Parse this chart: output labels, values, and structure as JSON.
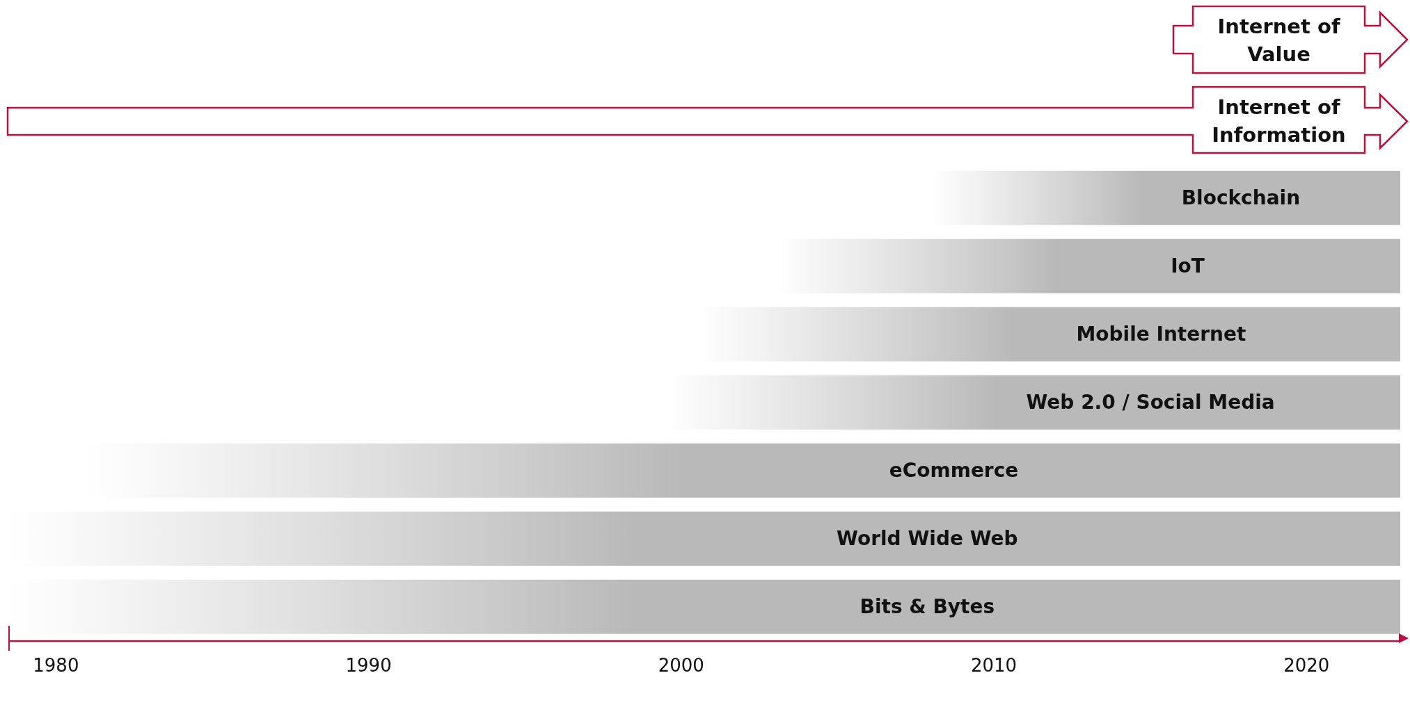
{
  "chart_data": {
    "type": "bar",
    "orientation": "horizontal",
    "categories": [
      "Blockchain",
      "IoT",
      "Mobile Internet",
      "Web 2.0 / Social Media",
      "eCommerce",
      "World Wide Web",
      "Bits & Bytes"
    ],
    "base": [
      2008,
      2003,
      2000.5,
      1999.5,
      1981,
      1978.5,
      1978.5
    ],
    "values": [
      15,
      20,
      22.5,
      23.5,
      42,
      44.5,
      44.5
    ],
    "color": "#b9b9b9",
    "xlim": [
      1978.5,
      2023
    ],
    "xticks": [
      1980,
      1990,
      2000,
      2010,
      2020
    ],
    "tick_labels": "x",
    "grid": false,
    "legend": false,
    "annotations": [
      "Internet of Value",
      "Internet of Information"
    ]
  }
}
